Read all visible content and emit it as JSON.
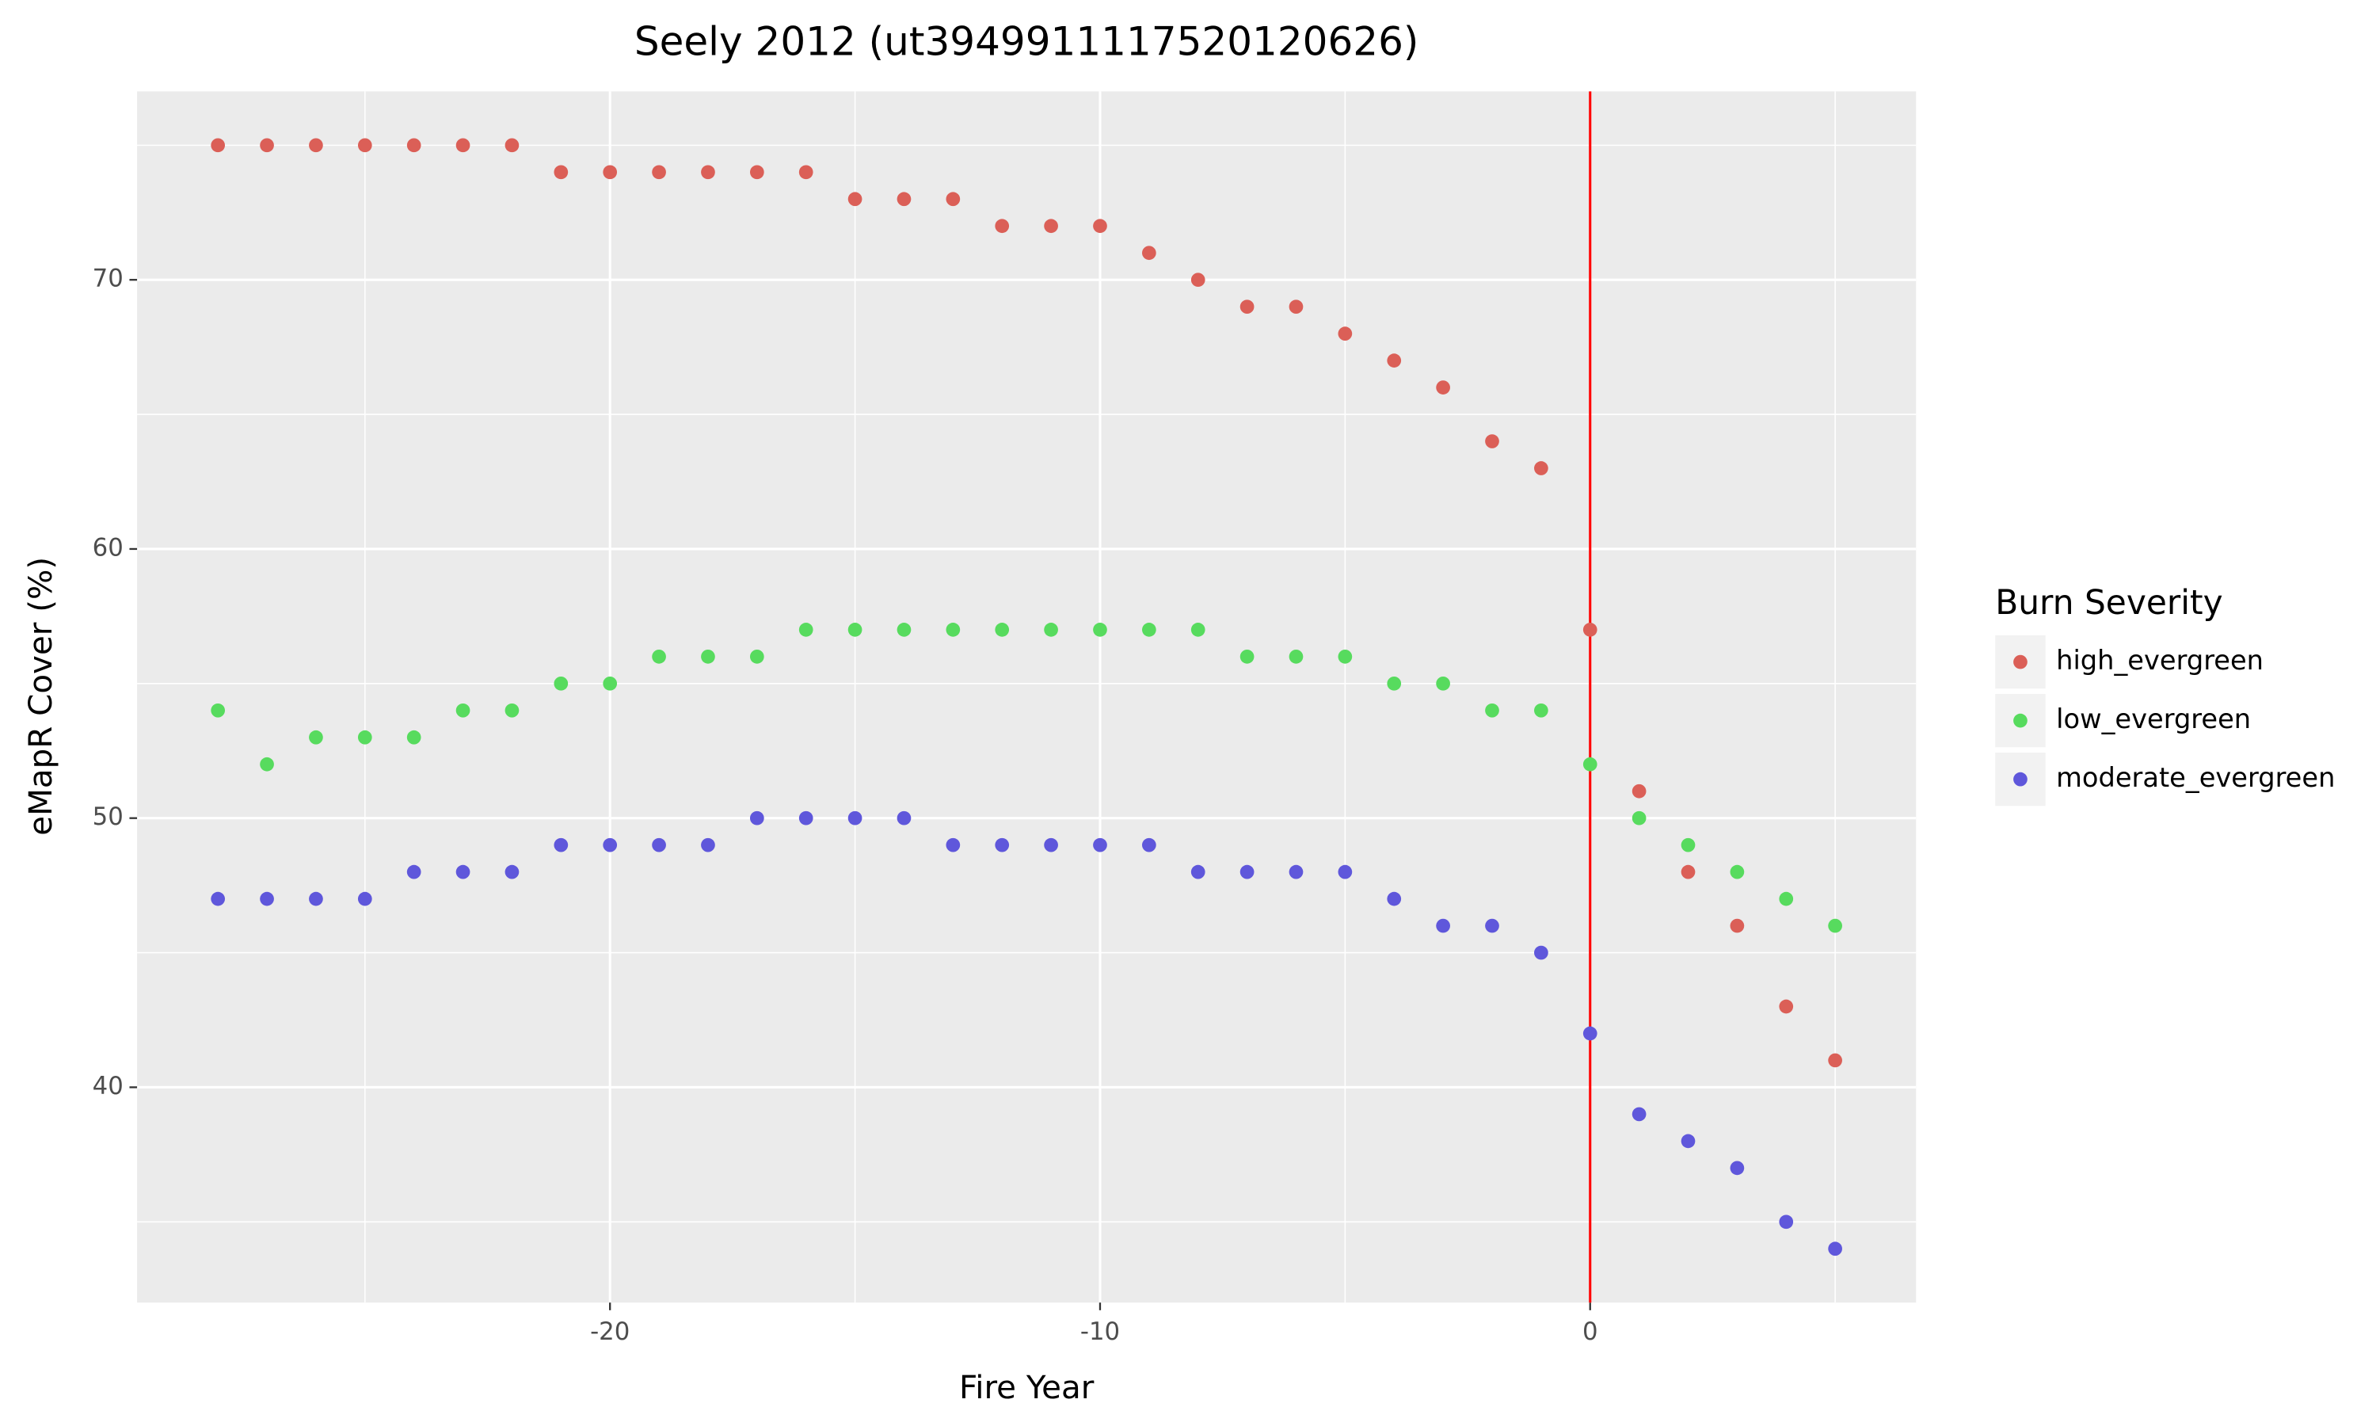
{
  "chart_data": {
    "type": "scatter",
    "title": "Seely 2012 (ut3949911117520120626)",
    "x_label": "Fire Year",
    "y_label": "eMapR Cover (%)",
    "legend_title": "Burn Severity",
    "legend_position": "right",
    "x": [
      -28,
      -27,
      -26,
      -25,
      -24,
      -23,
      -22,
      -21,
      -20,
      -19,
      -18,
      -17,
      -16,
      -15,
      -14,
      -13,
      -12,
      -11,
      -10,
      -9,
      -8,
      -7,
      -6,
      -5,
      -4,
      -3,
      -2,
      -1,
      0,
      1,
      2,
      3,
      4,
      5
    ],
    "series": [
      {
        "name": "high_evergreen",
        "color": "#db5f57",
        "values": [
          75,
          75,
          75,
          75,
          75,
          75,
          75,
          74,
          74,
          74,
          74,
          74,
          74,
          73,
          73,
          73,
          72,
          72,
          72,
          71,
          70,
          69,
          69,
          68,
          67,
          66,
          64,
          63,
          57,
          51,
          48,
          46,
          43,
          41
        ]
      },
      {
        "name": "low_evergreen",
        "color": "#57db5e",
        "values": [
          54,
          52,
          53,
          53,
          53,
          54,
          54,
          55,
          55,
          56,
          56,
          56,
          57,
          57,
          57,
          57,
          57,
          57,
          57,
          57,
          57,
          56,
          56,
          56,
          55,
          55,
          54,
          54,
          52,
          50,
          49,
          48,
          47,
          46
        ]
      },
      {
        "name": "moderate_evergreen",
        "color": "#5f57db",
        "values": [
          47,
          47,
          47,
          47,
          48,
          48,
          48,
          49,
          49,
          49,
          49,
          50,
          50,
          50,
          50,
          49,
          49,
          49,
          49,
          49,
          48,
          48,
          48,
          48,
          47,
          46,
          46,
          45,
          42,
          39,
          38,
          37,
          35,
          34
        ]
      }
    ],
    "xlim": [
      -29.65,
      6.65
    ],
    "ylim": [
      32,
      77
    ],
    "xticks": [
      -20,
      -10,
      0
    ],
    "yticks": [
      40,
      50,
      60,
      70
    ],
    "x_minor_grid": [
      -25,
      -15,
      -5,
      5
    ],
    "y_minor_grid": [
      35,
      45,
      55,
      65,
      75
    ],
    "grid": true,
    "vline": {
      "x": 0,
      "color": "#ff0000"
    }
  }
}
